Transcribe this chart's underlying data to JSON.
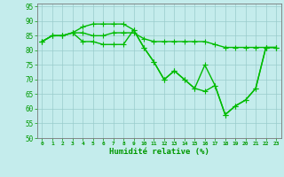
{
  "xlabel": "Humidité relative (%)",
  "bg_color": "#c4ecec",
  "line_color": "#00bb00",
  "grid_color": "#99cccc",
  "text_color": "#009900",
  "xlim": [
    -0.5,
    23.5
  ],
  "ylim": [
    50,
    96
  ],
  "yticks": [
    50,
    55,
    60,
    65,
    70,
    75,
    80,
    85,
    90,
    95
  ],
  "xticks": [
    0,
    1,
    2,
    3,
    4,
    5,
    6,
    7,
    8,
    9,
    10,
    11,
    12,
    13,
    14,
    15,
    16,
    17,
    18,
    19,
    20,
    21,
    22,
    23
  ],
  "line1": [
    83,
    85,
    85,
    86,
    86,
    85,
    85,
    86,
    86,
    86,
    84,
    83,
    83,
    83,
    83,
    83,
    83,
    82,
    81,
    81,
    81,
    81,
    81,
    81
  ],
  "line2": [
    83,
    85,
    85,
    86,
    88,
    89,
    89,
    89,
    89,
    87,
    81,
    76,
    70,
    73,
    70,
    67,
    75,
    68,
    58,
    61,
    63,
    67,
    81,
    81
  ],
  "line3": [
    83,
    85,
    85,
    86,
    83,
    83,
    82,
    82,
    82,
    87,
    81,
    76,
    70,
    73,
    70,
    67,
    66,
    68,
    58,
    61,
    63,
    67,
    81,
    81
  ],
  "markersize": 2.5,
  "linewidth": 1.0
}
